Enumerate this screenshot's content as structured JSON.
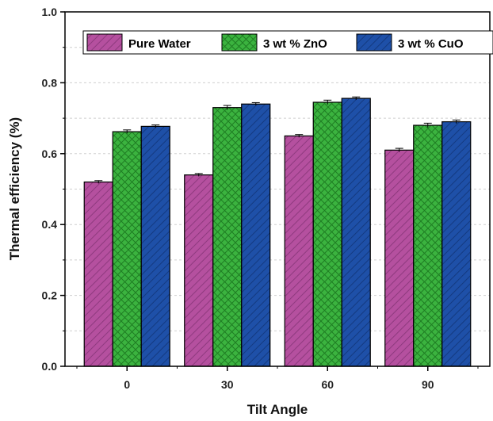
{
  "chart_data": {
    "type": "bar",
    "title": "",
    "xlabel": "Tilt Angle",
    "ylabel": "Thermal efficiency (%)",
    "categories": [
      "0",
      "30",
      "60",
      "90"
    ],
    "ylim": [
      0.0,
      1.0
    ],
    "yticks": [
      "0.0",
      "0.2",
      "0.4",
      "0.6",
      "0.8",
      "1.0"
    ],
    "grid": "horizontal dashed",
    "legend_position": "top",
    "series": [
      {
        "name": "Pure Water",
        "values": [
          0.52,
          0.54,
          0.65,
          0.61
        ],
        "errors": [
          0.004,
          0.004,
          0.004,
          0.005
        ],
        "color": "#B5509F",
        "pattern": "diagonal"
      },
      {
        "name": "3 wt % ZnO",
        "values": [
          0.662,
          0.73,
          0.745,
          0.68
        ],
        "errors": [
          0.005,
          0.006,
          0.006,
          0.006
        ],
        "color": "#3BB33F",
        "pattern": "crosshatch"
      },
      {
        "name": "3 wt % CuO",
        "values": [
          0.677,
          0.74,
          0.756,
          0.69
        ],
        "errors": [
          0.004,
          0.004,
          0.004,
          0.005
        ],
        "color": "#1E50A8",
        "pattern": "diagonal"
      }
    ]
  }
}
